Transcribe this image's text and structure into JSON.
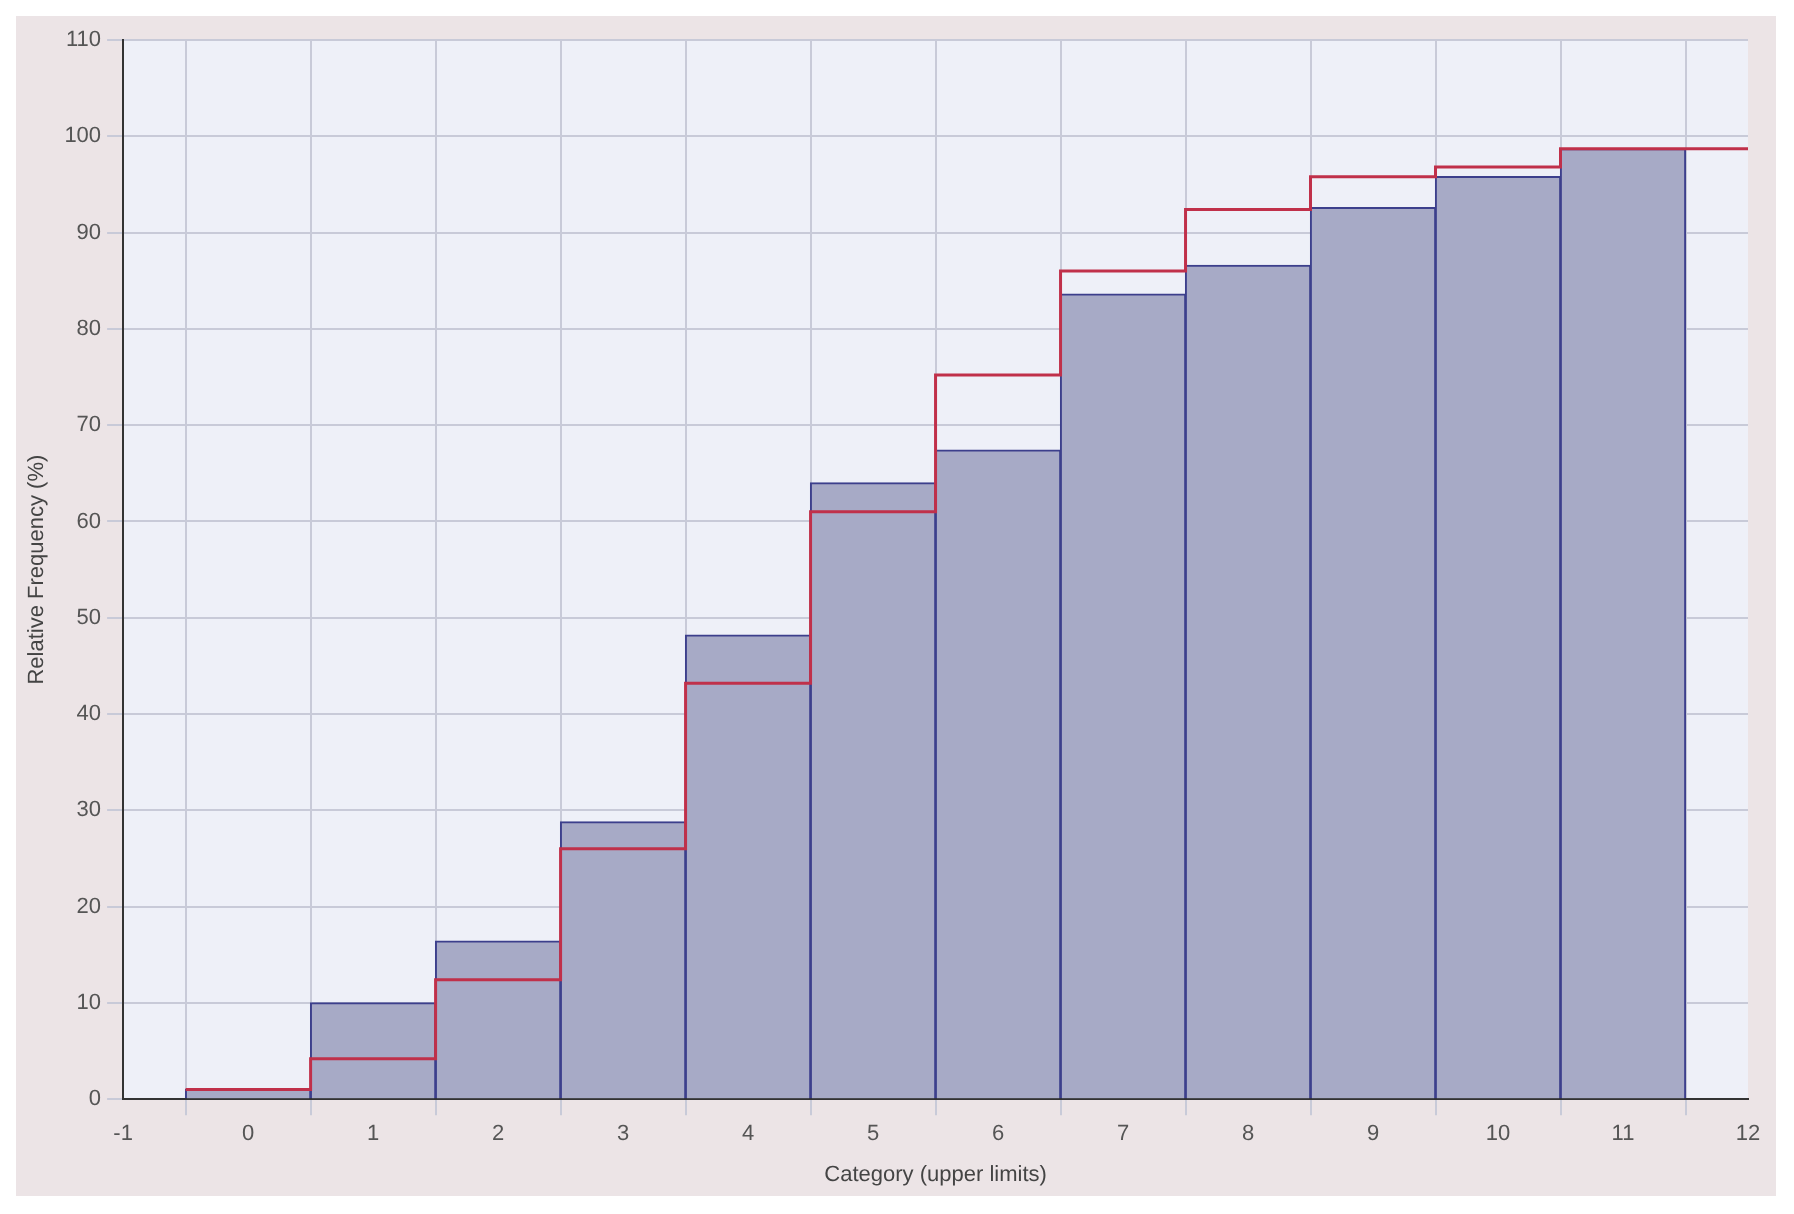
{
  "chart_data": {
    "type": "histogram",
    "xlabel": "Category (upper limits)",
    "ylabel": "Relative Frequency (%)",
    "bins": [
      -0.5,
      0.5,
      1.5,
      2.5,
      3.5,
      4.5,
      5.5,
      6.5,
      7.5,
      8.5,
      9.5,
      10.5,
      11.5
    ],
    "values": [
      1,
      10,
      16.4,
      28.8,
      48.2,
      64,
      67.4,
      83.6,
      86.6,
      92.6,
      95.8,
      98.7
    ],
    "color": "#a7aac6",
    "series": [
      {
        "type": "step",
        "color": "#c0304a",
        "x": [
          -0.5,
          0.5,
          1.5,
          2.5,
          3.5,
          4.5,
          5.5,
          6.5,
          7.5,
          8.5,
          9.5,
          10.5,
          12
        ],
        "values": [
          1,
          4.2,
          12.4,
          26,
          43.2,
          61,
          75.2,
          86,
          92.4,
          95.8,
          96.8,
          98.7,
          98.7
        ]
      }
    ],
    "xlim": [
      -1,
      12
    ],
    "xticks": [
      -1,
      0,
      1,
      2,
      3,
      4,
      5,
      6,
      7,
      8,
      9,
      10,
      11,
      12
    ],
    "ylim": [
      0,
      110
    ],
    "yticks": [
      0,
      10,
      20,
      30,
      40,
      50,
      60,
      70,
      80,
      90,
      100,
      110
    ],
    "grid": true,
    "legend": false
  }
}
